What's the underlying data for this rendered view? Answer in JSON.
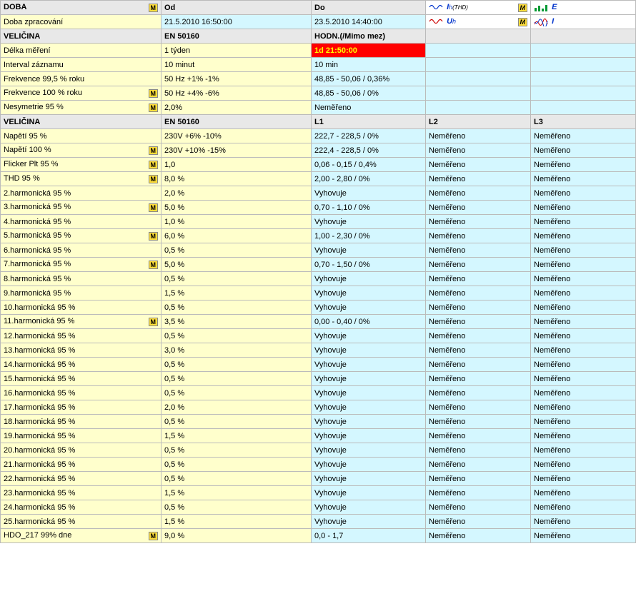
{
  "colors": {
    "header_bg": "#e8e8e8",
    "yellow_bg": "#ffffcc",
    "cyan_bg": "#d4f7ff",
    "red_bg": "#ff0000",
    "red_fg_on_red": "#ffff00",
    "badge_bg": "#ffde3a",
    "border": "#bbbbbb",
    "blue": "#0033cc",
    "red_text": "#cc0000",
    "green": "#009933"
  },
  "badge_letter": "M",
  "top_header": {
    "c1": "DOBA",
    "c2": "Od",
    "c3": "Do"
  },
  "signals": {
    "ih": {
      "label_i": "I",
      "label_h": "h",
      "sub": "(THD)"
    },
    "e": "E",
    "uh": {
      "label_u": "U",
      "label_h": "h"
    },
    "i": "I"
  },
  "row_doba": {
    "label": "Doba zpracování",
    "od": "21.5.2010 16:50:00",
    "do": "23.5.2010 14:40:00"
  },
  "sec1_header": {
    "c1": "VELIČINA",
    "c2": "EN 50160",
    "c3": "HODN.(/Mimo mez)"
  },
  "sec1_rows": [
    {
      "label": "Délka měření",
      "badge": false,
      "en": "1 týden",
      "hodn": "1d 21:50:00",
      "hodn_red": true
    },
    {
      "label": "Interval záznamu",
      "badge": false,
      "en": "10 minut",
      "hodn": "10 min",
      "hodn_red": false
    },
    {
      "label": "Frekvence 99,5 % roku",
      "badge": false,
      "en": "50 Hz +1% -1%",
      "hodn": "48,85 - 50,06 / 0,36%",
      "hodn_red": false
    },
    {
      "label": "Frekvence 100 % roku",
      "badge": true,
      "en": "50 Hz +4% -6%",
      "hodn": "48,85 - 50,06 / 0%",
      "hodn_red": false
    },
    {
      "label": "Nesymetrie 95 %",
      "badge": true,
      "en": "2,0%",
      "hodn": "Neměřeno",
      "hodn_red": false
    }
  ],
  "sec2_header": {
    "c1": "VELIČINA",
    "c2": "EN 50160",
    "c3": "L1",
    "c4": "L2",
    "c5": "L3"
  },
  "sec2_rows": [
    {
      "label": "Napětí 95 %",
      "badge": false,
      "en": "230V +6% -10%",
      "l1": "222,7 - 228,5 / 0%",
      "l2": "Neměřeno",
      "l3": "Neměřeno"
    },
    {
      "label": "Napětí 100 %",
      "badge": true,
      "en": "230V +10% -15%",
      "l1": "222,4 - 228,5 / 0%",
      "l2": "Neměřeno",
      "l3": "Neměřeno"
    },
    {
      "label": "Flicker Plt 95 %",
      "badge": true,
      "en": "1,0",
      "l1": "0,06 - 0,15 / 0,4%",
      "l2": "Neměřeno",
      "l3": "Neměřeno"
    },
    {
      "label": "THD 95 %",
      "badge": true,
      "en": "8,0 %",
      "l1": "2,00 - 2,80 / 0%",
      "l2": "Neměřeno",
      "l3": "Neměřeno"
    },
    {
      "label": "2.harmonická 95 %",
      "badge": false,
      "en": "2,0 %",
      "l1": "Vyhovuje",
      "l2": "Neměřeno",
      "l3": "Neměřeno"
    },
    {
      "label": "3.harmonická 95 %",
      "badge": true,
      "en": "5,0 %",
      "l1": "0,70 - 1,10 / 0%",
      "l2": "Neměřeno",
      "l3": "Neměřeno"
    },
    {
      "label": "4.harmonická 95 %",
      "badge": false,
      "en": "1,0 %",
      "l1": "Vyhovuje",
      "l2": "Neměřeno",
      "l3": "Neměřeno"
    },
    {
      "label": "5.harmonická 95 %",
      "badge": true,
      "en": "6,0 %",
      "l1": "1,00 - 2,30 / 0%",
      "l2": "Neměřeno",
      "l3": "Neměřeno"
    },
    {
      "label": "6.harmonická 95 %",
      "badge": false,
      "en": "0,5 %",
      "l1": "Vyhovuje",
      "l2": "Neměřeno",
      "l3": "Neměřeno"
    },
    {
      "label": "7.harmonická 95 %",
      "badge": true,
      "en": "5,0 %",
      "l1": "0,70 - 1,50 / 0%",
      "l2": "Neměřeno",
      "l3": "Neměřeno"
    },
    {
      "label": "8.harmonická 95 %",
      "badge": false,
      "en": "0,5 %",
      "l1": "Vyhovuje",
      "l2": "Neměřeno",
      "l3": "Neměřeno"
    },
    {
      "label": "9.harmonická 95 %",
      "badge": false,
      "en": "1,5 %",
      "l1": "Vyhovuje",
      "l2": "Neměřeno",
      "l3": "Neměřeno"
    },
    {
      "label": "10.harmonická 95 %",
      "badge": false,
      "en": "0,5 %",
      "l1": "Vyhovuje",
      "l2": "Neměřeno",
      "l3": "Neměřeno"
    },
    {
      "label": "11.harmonická 95 %",
      "badge": true,
      "en": "3,5 %",
      "l1": "0,00 - 0,40 / 0%",
      "l2": "Neměřeno",
      "l3": "Neměřeno"
    },
    {
      "label": "12.harmonická 95 %",
      "badge": false,
      "en": "0,5 %",
      "l1": "Vyhovuje",
      "l2": "Neměřeno",
      "l3": "Neměřeno"
    },
    {
      "label": "13.harmonická 95 %",
      "badge": false,
      "en": "3,0 %",
      "l1": "Vyhovuje",
      "l2": "Neměřeno",
      "l3": "Neměřeno"
    },
    {
      "label": "14.harmonická 95 %",
      "badge": false,
      "en": "0,5 %",
      "l1": "Vyhovuje",
      "l2": "Neměřeno",
      "l3": "Neměřeno"
    },
    {
      "label": "15.harmonická 95 %",
      "badge": false,
      "en": "0,5 %",
      "l1": "Vyhovuje",
      "l2": "Neměřeno",
      "l3": "Neměřeno"
    },
    {
      "label": "16.harmonická 95 %",
      "badge": false,
      "en": "0,5 %",
      "l1": "Vyhovuje",
      "l2": "Neměřeno",
      "l3": "Neměřeno"
    },
    {
      "label": "17.harmonická 95 %",
      "badge": false,
      "en": "2,0 %",
      "l1": "Vyhovuje",
      "l2": "Neměřeno",
      "l3": "Neměřeno"
    },
    {
      "label": "18.harmonická 95 %",
      "badge": false,
      "en": "0,5 %",
      "l1": "Vyhovuje",
      "l2": "Neměřeno",
      "l3": "Neměřeno"
    },
    {
      "label": "19.harmonická 95 %",
      "badge": false,
      "en": "1,5 %",
      "l1": "Vyhovuje",
      "l2": "Neměřeno",
      "l3": "Neměřeno"
    },
    {
      "label": "20.harmonická 95 %",
      "badge": false,
      "en": "0,5 %",
      "l1": "Vyhovuje",
      "l2": "Neměřeno",
      "l3": "Neměřeno"
    },
    {
      "label": "21.harmonická 95 %",
      "badge": false,
      "en": "0,5 %",
      "l1": "Vyhovuje",
      "l2": "Neměřeno",
      "l3": "Neměřeno"
    },
    {
      "label": "22.harmonická 95 %",
      "badge": false,
      "en": "0,5 %",
      "l1": "Vyhovuje",
      "l2": "Neměřeno",
      "l3": "Neměřeno"
    },
    {
      "label": "23.harmonická 95 %",
      "badge": false,
      "en": "1,5 %",
      "l1": "Vyhovuje",
      "l2": "Neměřeno",
      "l3": "Neměřeno"
    },
    {
      "label": "24.harmonická 95 %",
      "badge": false,
      "en": "0,5 %",
      "l1": "Vyhovuje",
      "l2": "Neměřeno",
      "l3": "Neměřeno"
    },
    {
      "label": "25.harmonická 95 %",
      "badge": false,
      "en": "1,5 %",
      "l1": "Vyhovuje",
      "l2": "Neměřeno",
      "l3": "Neměřeno"
    },
    {
      "label": "HDO_217 99% dne",
      "badge": true,
      "en": "9,0 %",
      "l1": "0,0 - 1,7",
      "l2": "Neměřeno",
      "l3": "Neměřeno"
    }
  ]
}
